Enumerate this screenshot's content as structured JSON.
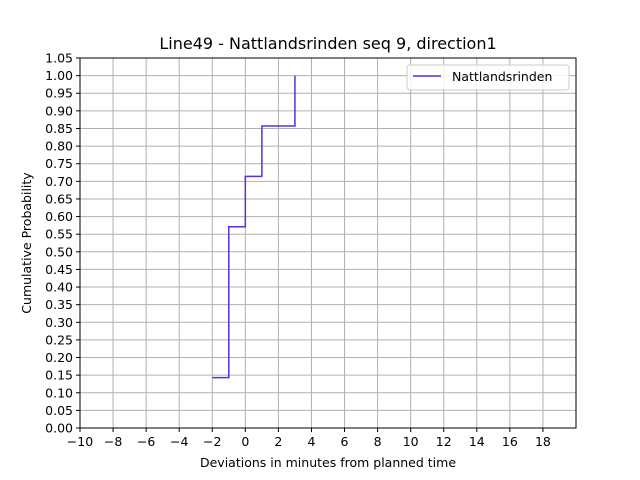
{
  "chart_data": {
    "type": "line",
    "title": "Line49 - Nattlandsrinden seq 9, direction1",
    "xlabel": "Deviations in minutes from planned time",
    "ylabel": "Cumulative Probability",
    "xlim": [
      -10,
      20
    ],
    "ylim": [
      0,
      1.05
    ],
    "xticks": [
      "−10",
      "−8",
      "−6",
      "−4",
      "−2",
      "0",
      "2",
      "4",
      "6",
      "8",
      "10",
      "12",
      "14",
      "16",
      "18"
    ],
    "xtick_values": [
      -10,
      -8,
      -6,
      -4,
      -2,
      0,
      2,
      4,
      6,
      8,
      10,
      12,
      14,
      16,
      18
    ],
    "yticks": [
      "0.00",
      "0.05",
      "0.10",
      "0.15",
      "0.20",
      "0.25",
      "0.30",
      "0.35",
      "0.40",
      "0.45",
      "0.50",
      "0.55",
      "0.60",
      "0.65",
      "0.70",
      "0.75",
      "0.80",
      "0.85",
      "0.90",
      "0.95",
      "1.00",
      "1.05"
    ],
    "ytick_values": [
      0,
      0.05,
      0.1,
      0.15,
      0.2,
      0.25,
      0.3,
      0.35,
      0.4,
      0.45,
      0.5,
      0.55,
      0.6,
      0.65,
      0.7,
      0.75,
      0.8,
      0.85,
      0.9,
      0.95,
      1.0,
      1.05
    ],
    "grid": true,
    "legend_position": "top-right",
    "series": [
      {
        "name": "Nattlandsrinden",
        "color": "#5a2ee6",
        "step": "post",
        "x": [
          -2,
          -1,
          0,
          1,
          3,
          3
        ],
        "y": [
          0.143,
          0.571,
          0.714,
          0.857,
          0.857,
          1.0
        ]
      }
    ]
  }
}
